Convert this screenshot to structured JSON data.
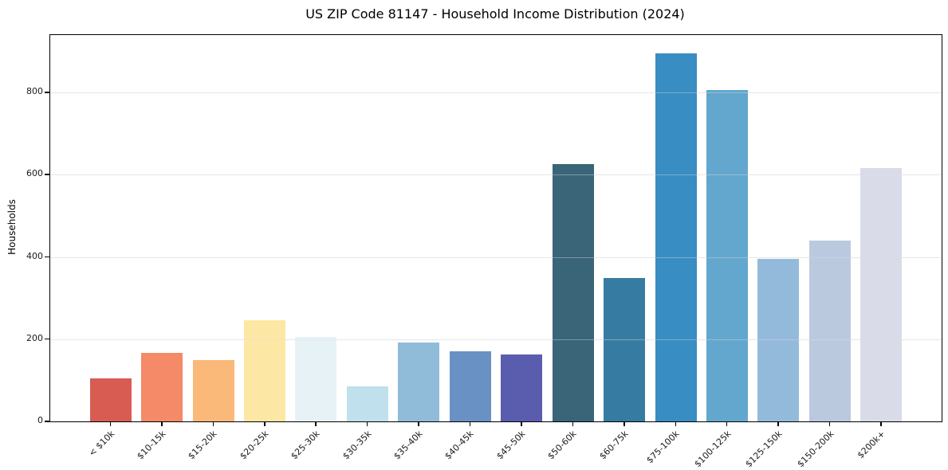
{
  "chart_data": {
    "type": "bar",
    "title": "US ZIP Code 81147 - Household Income Distribution (2024)",
    "xlabel": "",
    "ylabel": "Households",
    "categories": [
      "< $10k",
      "$10-15k",
      "$15-20k",
      "$20-25k",
      "$25-30k",
      "$30-35k",
      "$35-40k",
      "$40-45k",
      "$45-50k",
      "$50-60k",
      "$60-75k",
      "$75-100k",
      "$100-125k",
      "$125-150k",
      "$150-200k",
      "$200k+"
    ],
    "values": [
      104,
      166,
      149,
      246,
      205,
      86,
      191,
      171,
      162,
      626,
      348,
      895,
      806,
      396,
      439,
      616
    ],
    "bar_colors": [
      "#d95c52",
      "#f48a68",
      "#fab978",
      "#fce8a4",
      "#e7f2f7",
      "#c0e0ed",
      "#90bcd9",
      "#6991c4",
      "#5a5dad",
      "#3a6478",
      "#367ca2",
      "#388dc3",
      "#63a7ce",
      "#94badb",
      "#bac9de",
      "#d9dbe8"
    ],
    "yticks": [
      0,
      200,
      400,
      600,
      800
    ],
    "ylim": [
      0,
      940
    ],
    "grid": "horizontal",
    "legend": "none",
    "background_color": "#ffffff",
    "spine_color": "#000000",
    "grid_color": "#e9e9e9",
    "x_tick_rotation_deg": 45
  }
}
